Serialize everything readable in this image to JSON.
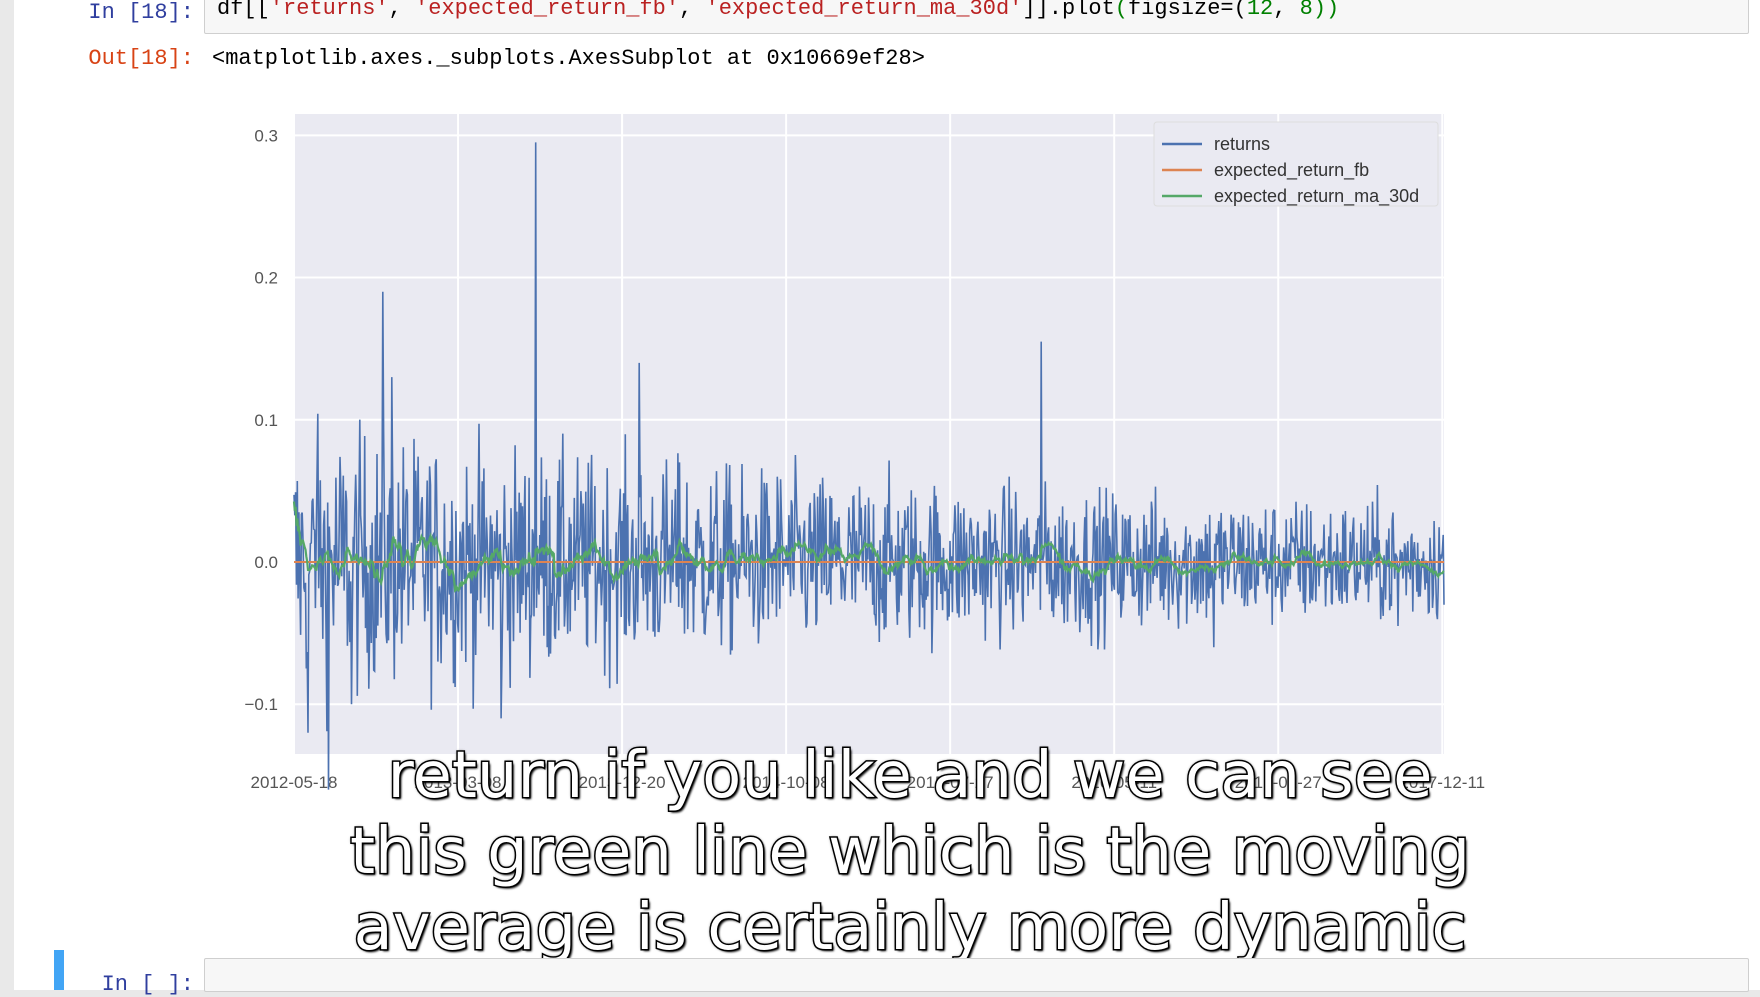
{
  "cell_in": {
    "prompt": "In [18]:",
    "code_parts": [
      "df[[",
      "'returns'",
      ", ",
      "'expected_return_fb'",
      ", ",
      "'expected_return_ma_30d'",
      "]].plot",
      "(",
      "figsize=(",
      "12",
      ", ",
      "8",
      "))"
    ]
  },
  "cell_out": {
    "prompt": "Out[18]:",
    "text": "<matplotlib.axes._subplots.AxesSubplot at 0x10669ef28>"
  },
  "chart_data": {
    "type": "line",
    "x_tick_labels": [
      "2012-05-18",
      "2013-03-08",
      "2013-12-20",
      "2014-10-08",
      "2015-07-27",
      "2016-05-11",
      "2017-02-27",
      "2017-12-11"
    ],
    "y_tick_labels": [
      "0.3",
      "0.2",
      "0.1",
      "0.0",
      "−0.1"
    ],
    "ylim": [
      -0.135,
      0.315
    ],
    "grid": true,
    "legend_position": "top-right",
    "series": [
      {
        "name": "returns",
        "color": "#4c72b0",
        "description_points": [
          [
            0,
            0.0
          ],
          [
            0.02,
            0.06
          ],
          [
            0.05,
            -0.1
          ],
          [
            0.077,
            0.19
          ],
          [
            0.085,
            0.13
          ],
          [
            0.15,
            -0.05
          ],
          [
            0.21,
            0.295
          ],
          [
            0.3,
            0.14
          ],
          [
            0.335,
            0.07
          ],
          [
            0.65,
            0.155
          ],
          [
            0.7,
            0.07
          ],
          [
            1.0,
            0.0
          ]
        ]
      },
      {
        "name": "expected_return_fb",
        "color": "#dd8452",
        "values": [
          0.0,
          0.0
        ]
      },
      {
        "name": "expected_return_ma_30d",
        "color": "#55a868"
      }
    ]
  },
  "caption_lines": [
    "return if you like and we can see",
    "this green line which is the moving",
    "average is certainly more dynamic"
  ],
  "next_cell": {
    "prompt": "In [ ]:"
  }
}
